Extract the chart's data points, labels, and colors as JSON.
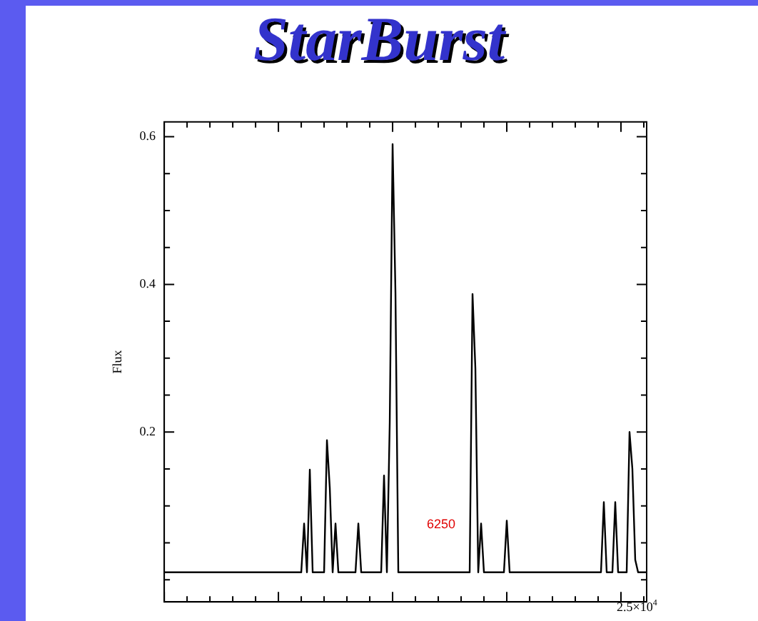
{
  "chart_data": {
    "type": "line",
    "title": "StarBurst",
    "ylabel": "Flux",
    "color": "#000000",
    "categories": [
      null,
      null,
      null,
      null,
      null,
      null,
      null,
      null,
      null,
      null,
      null,
      null,
      null,
      null,
      null,
      null,
      null,
      null,
      null,
      null,
      null,
      null,
      null,
      null,
      null,
      null,
      null,
      null,
      null,
      null,
      null,
      null,
      null,
      null,
      null,
      null,
      null,
      null,
      null,
      null,
      null,
      null,
      null,
      null,
      null,
      null,
      null,
      null,
      null,
      null,
      null,
      null,
      null,
      null,
      null,
      null,
      null,
      null,
      null,
      null,
      null,
      null,
      null,
      null,
      null,
      null,
      null,
      null,
      null,
      null,
      null,
      null,
      null,
      null,
      null,
      null,
      null,
      null,
      null,
      null,
      null,
      null,
      null,
      null,
      null,
      null,
      null,
      null,
      null,
      null,
      null,
      null,
      null,
      null,
      null,
      null,
      null,
      null,
      null,
      null,
      null,
      null,
      null,
      null,
      null,
      null,
      null,
      null,
      null,
      null,
      null,
      null,
      null,
      null,
      null,
      null,
      null,
      null,
      null,
      null,
      null,
      null,
      null,
      null,
      null,
      null,
      null,
      null,
      null,
      null,
      null,
      null,
      null,
      null,
      null,
      null,
      null,
      null,
      null,
      null,
      null,
      null,
      null,
      null,
      null,
      null,
      null,
      null,
      null,
      null,
      null,
      null,
      null,
      null,
      null,
      null,
      null,
      null,
      null,
      null,
      null,
      null,
      null,
      null,
      null,
      null,
      null,
      null,
      null,
      null
    ],
    "values": [
      0.01,
      0.01,
      0.01,
      0.01,
      0.01,
      0.01,
      0.01,
      0.01,
      0.01,
      0.01,
      0.01,
      0.01,
      0.01,
      0.01,
      0.01,
      0.01,
      0.01,
      0.01,
      0.01,
      0.01,
      0.01,
      0.01,
      0.01,
      0.01,
      0.01,
      0.01,
      0.01,
      0.01,
      0.01,
      0.01,
      0.01,
      0.01,
      0.01,
      0.01,
      0.01,
      0.01,
      0.01,
      0.01,
      0.01,
      0.01,
      0.01,
      0.01,
      0.01,
      0.01,
      0.01,
      0.01,
      0.01,
      0.01,
      0.01,
      0.076,
      0.01,
      0.149,
      0.01,
      0.01,
      0.01,
      0.01,
      0.01,
      0.189,
      0.124,
      0.01,
      0.076,
      0.01,
      0.01,
      0.01,
      0.01,
      0.01,
      0.01,
      0.01,
      0.076,
      0.01,
      0.01,
      0.01,
      0.01,
      0.01,
      0.01,
      0.01,
      0.01,
      0.141,
      0.01,
      0.213,
      0.59,
      0.389,
      0.01,
      0.01,
      0.01,
      0.01,
      0.01,
      0.01,
      0.01,
      0.01,
      0.01,
      0.01,
      0.01,
      0.01,
      0.01,
      0.01,
      0.01,
      0.01,
      0.01,
      0.01,
      0.01,
      0.01,
      0.01,
      0.01,
      0.01,
      0.01,
      0.01,
      0.01,
      0.387,
      0.286,
      0.01,
      0.076,
      0.01,
      0.01,
      0.01,
      0.01,
      0.01,
      0.01,
      0.01,
      0.01,
      0.08,
      0.01,
      0.01,
      0.01,
      0.01,
      0.01,
      0.01,
      0.01,
      0.01,
      0.01,
      0.01,
      0.01,
      0.01,
      0.01,
      0.01,
      0.01,
      0.01,
      0.01,
      0.01,
      0.01,
      0.01,
      0.01,
      0.01,
      0.01,
      0.01,
      0.01,
      0.01,
      0.01,
      0.01,
      0.01,
      0.01,
      0.01,
      0.01,
      0.01,
      0.105,
      0.01,
      0.01,
      0.01,
      0.105,
      0.01,
      0.01,
      0.01,
      0.01,
      0.2,
      0.15,
      0.027,
      0.01,
      0.01,
      0.01,
      0.01
    ],
    "ylim": [
      -0.03,
      0.62
    ],
    "yticks": [
      {
        "value": 0,
        "label": null
      },
      {
        "value": 0.05,
        "label": null
      },
      {
        "value": 0.1,
        "label": null
      },
      {
        "value": 0.15,
        "label": null
      },
      0.2,
      {
        "value": 0.25,
        "label": null
      },
      {
        "value": 0.3,
        "label": null
      },
      {
        "value": 0.35,
        "label": null
      },
      0.4,
      {
        "value": 0.45,
        "label": null
      },
      {
        "value": 0.5,
        "label": null
      },
      {
        "value": 0.55,
        "label": null
      },
      0.6
    ],
    "grid": false,
    "legend": false,
    "marker": "none",
    "line_style": "solid",
    "annotations": [
      "2.5×10$^{4}$",
      "6250"
    ]
  }
}
